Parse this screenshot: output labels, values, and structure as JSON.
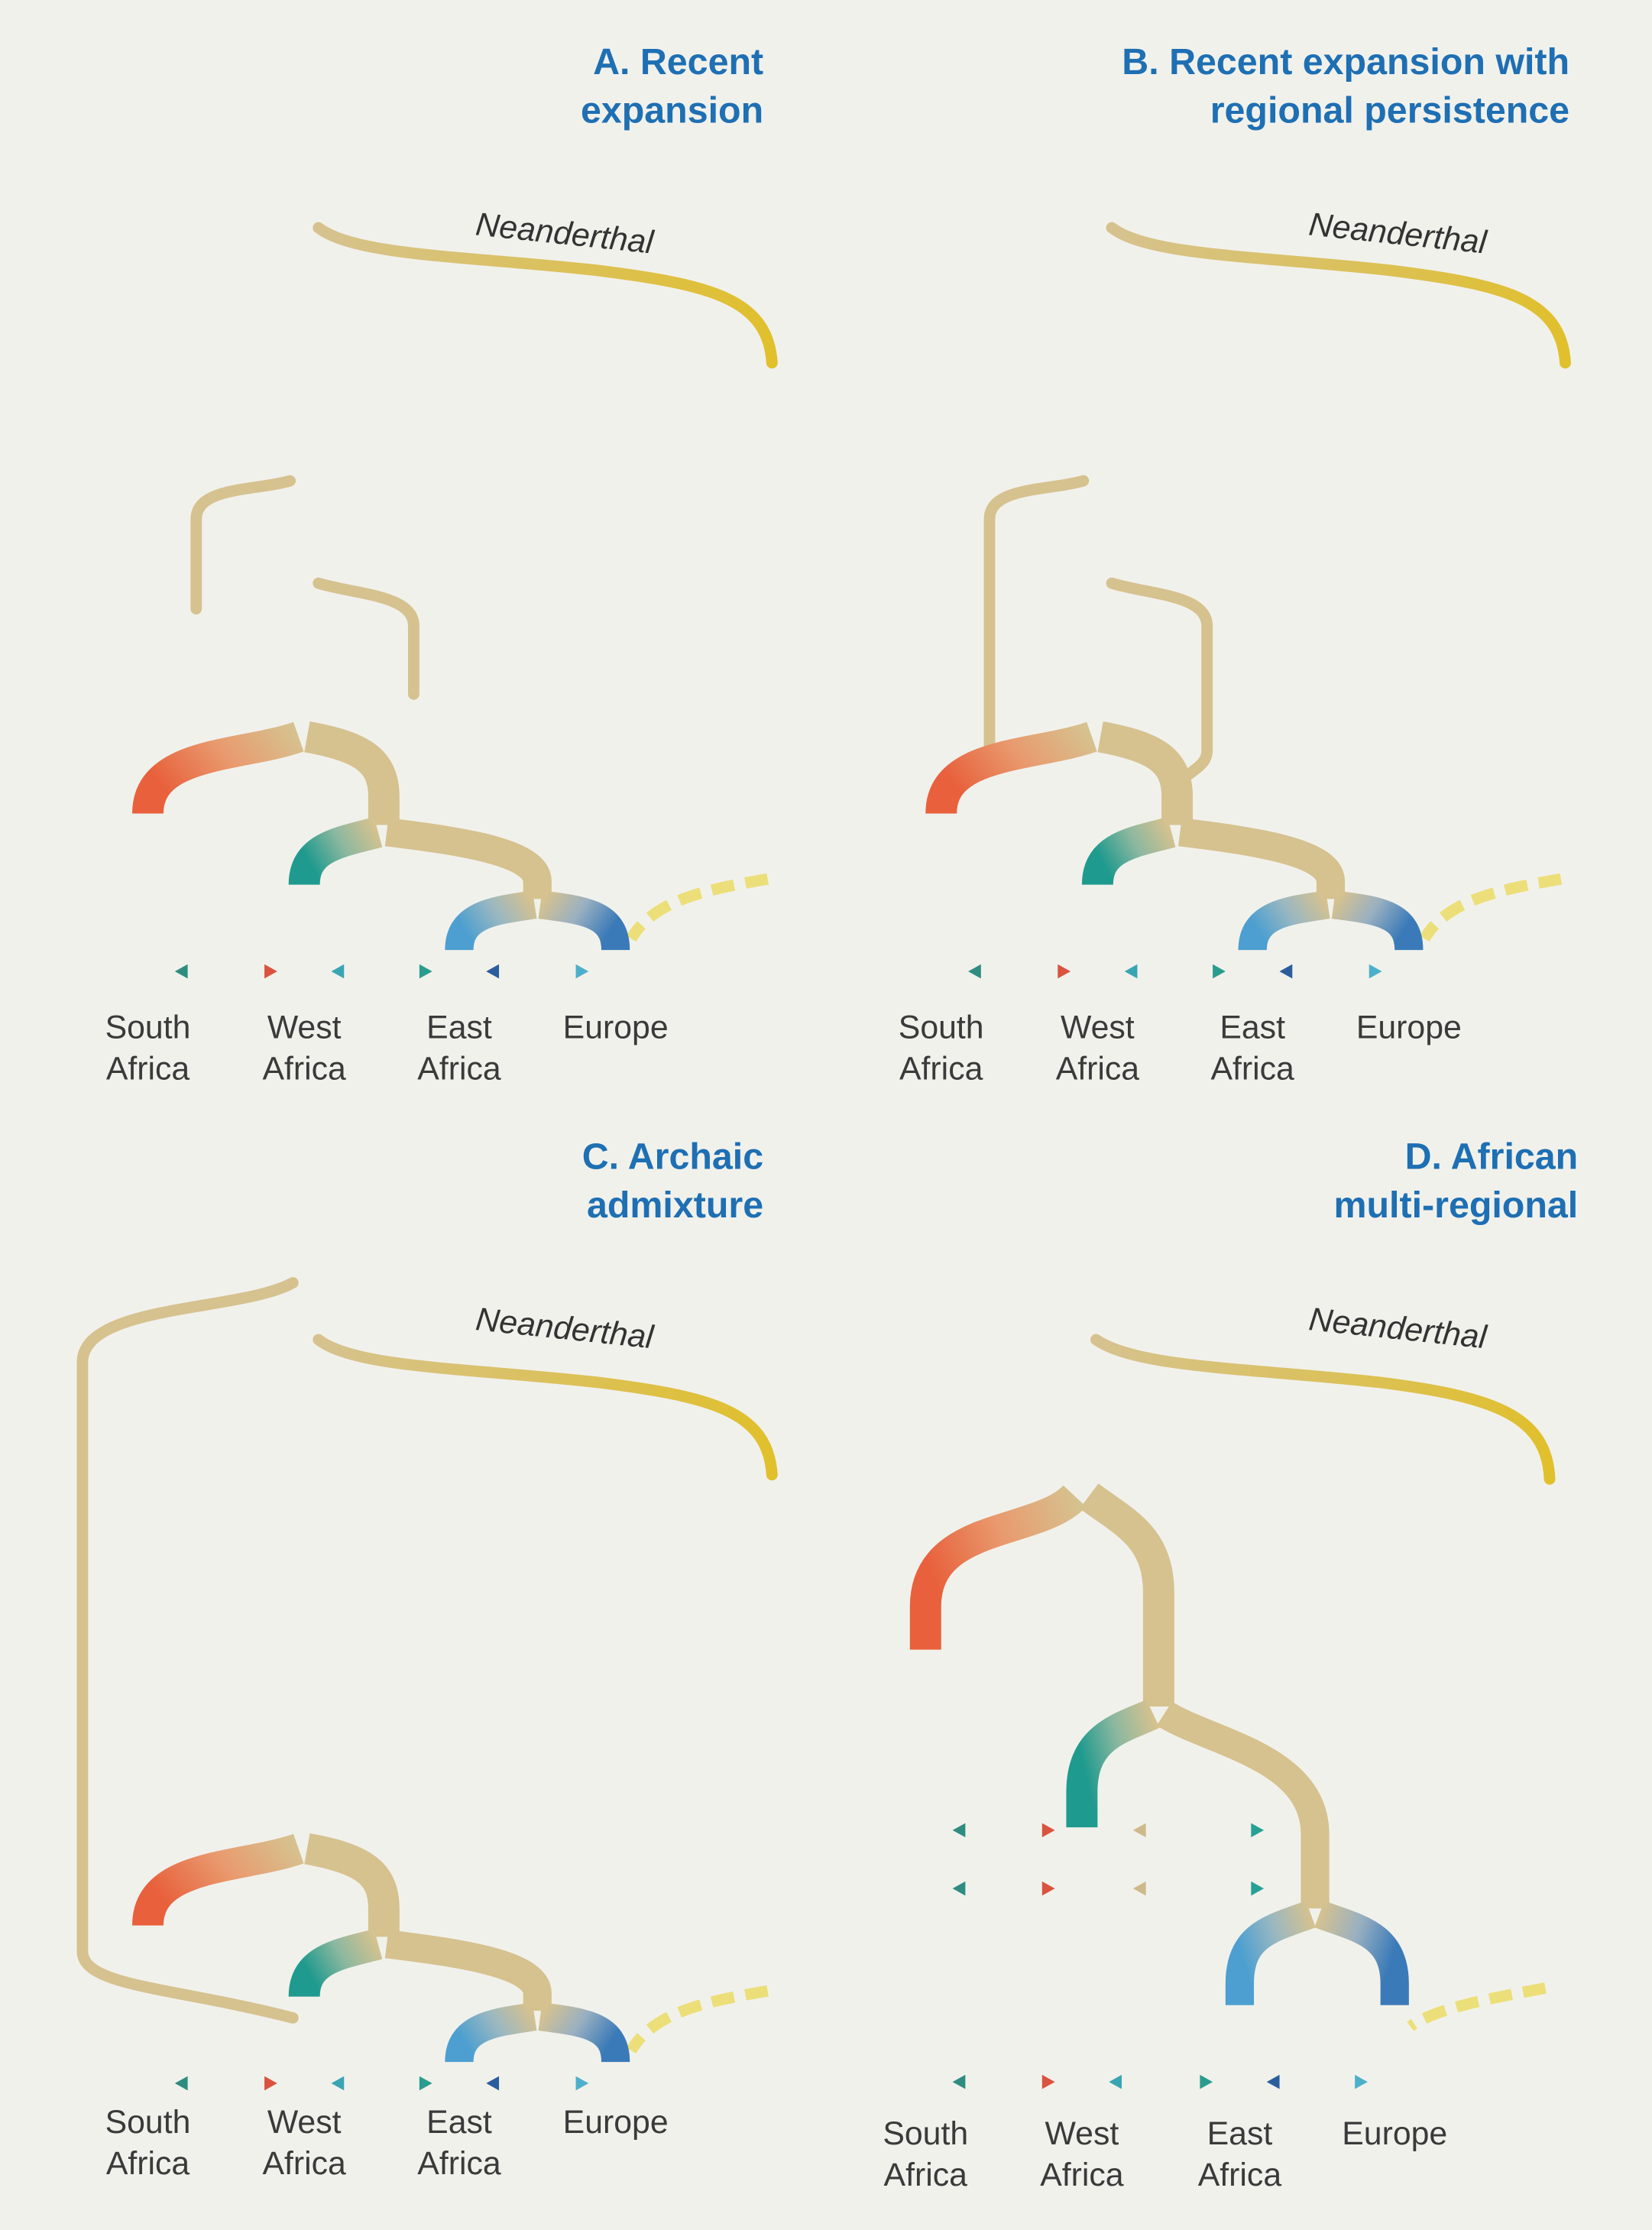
{
  "colors": {
    "background": "#f1f1ec",
    "title": "#1e6fb3",
    "ancestral_trunk": "#d6c28f",
    "ancestral_top": "#ece2c9",
    "south_africa": "#e8613c",
    "west_africa": "#1f9a8e",
    "east_africa": "#4c9fd0",
    "europe": "#2a5d9c",
    "neanderthal": "#e0c02c",
    "neanderthal_light": "#efe06c"
  },
  "panels": [
    {
      "id": "A",
      "title_lines": [
        "A. Recent",
        "expansion"
      ],
      "neanderthal_label": "Neanderthal",
      "populations": [
        {
          "lines": [
            "South",
            "Africa"
          ]
        },
        {
          "lines": [
            "West",
            "Africa"
          ]
        },
        {
          "lines": [
            "East",
            "Africa"
          ]
        },
        {
          "lines": [
            "Europe"
          ]
        }
      ]
    },
    {
      "id": "B",
      "title_lines": [
        "B. Recent expansion with",
        "regional persistence"
      ],
      "neanderthal_label": "Neanderthal",
      "populations": [
        {
          "lines": [
            "South",
            "Africa"
          ]
        },
        {
          "lines": [
            "West",
            "Africa"
          ]
        },
        {
          "lines": [
            "East",
            "Africa"
          ]
        },
        {
          "lines": [
            "Europe"
          ]
        }
      ]
    },
    {
      "id": "C",
      "title_lines": [
        "C. Archaic",
        "admixture"
      ],
      "neanderthal_label": "Neanderthal",
      "populations": [
        {
          "lines": [
            "South",
            "Africa"
          ]
        },
        {
          "lines": [
            "West",
            "Africa"
          ]
        },
        {
          "lines": [
            "East",
            "Africa"
          ]
        },
        {
          "lines": [
            "Europe"
          ]
        }
      ]
    },
    {
      "id": "D",
      "title_lines": [
        "D. African",
        "multi-regional"
      ],
      "neanderthal_label": "Neanderthal",
      "populations": [
        {
          "lines": [
            "South",
            "Africa"
          ]
        },
        {
          "lines": [
            "West",
            "Africa"
          ]
        },
        {
          "lines": [
            "East",
            "Africa"
          ]
        },
        {
          "lines": [
            "Europe"
          ]
        }
      ]
    }
  ]
}
